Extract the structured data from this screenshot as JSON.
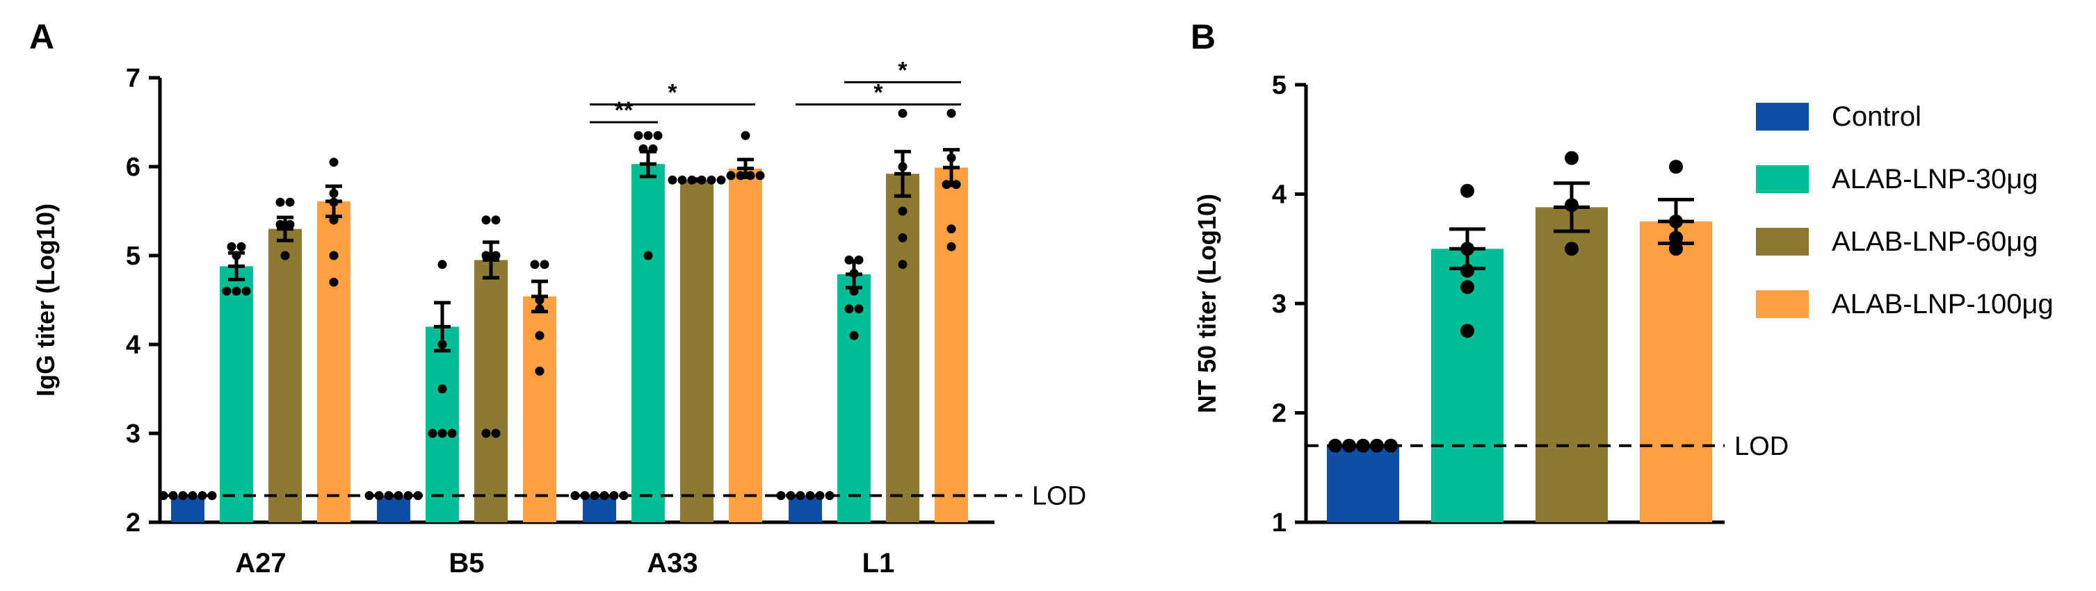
{
  "chart_data": [
    {
      "panel": "A",
      "type": "bar",
      "ylabel": "IgG titer (Log10)",
      "ylim": [
        2,
        7
      ],
      "yticks": [
        "2",
        "3",
        "4",
        "5",
        "6",
        "7"
      ],
      "categories": [
        "A27",
        "B5",
        "A33",
        "L1"
      ],
      "lod": {
        "value": 2.3,
        "label": "LOD"
      },
      "series": [
        {
          "name": "Control",
          "color": "#0d4ea6",
          "values": [
            2.3,
            2.3,
            2.3,
            2.3
          ],
          "errors": [
            0,
            0,
            0,
            0
          ],
          "points": [
            [
              2.3,
              2.3,
              2.3,
              2.3,
              2.3,
              2.3
            ],
            [
              2.3,
              2.3,
              2.3,
              2.3,
              2.3,
              2.3
            ],
            [
              2.3,
              2.3,
              2.3,
              2.3,
              2.3,
              2.3
            ],
            [
              2.3,
              2.3,
              2.3,
              2.3,
              2.3,
              2.3
            ]
          ]
        },
        {
          "name": "ALAB-LNP-30μg",
          "color": "#00bf96",
          "values": [
            4.88,
            4.2,
            6.03,
            4.79
          ],
          "errors": [
            0.15,
            0.27,
            0.14,
            0.15
          ],
          "points": [
            [
              5.1,
              5.1,
              5.0,
              4.6,
              4.6,
              4.6
            ],
            [
              4.9,
              4.0,
              3.5,
              3.0,
              3.0,
              3.0
            ],
            [
              6.35,
              6.35,
              6.35,
              6.2,
              6.2,
              5.0
            ],
            [
              4.95,
              4.95,
              4.8,
              4.6,
              4.4,
              4.4,
              4.1
            ]
          ]
        },
        {
          "name": "ALAB-LNP-60μg",
          "color": "#8d7932",
          "values": [
            5.3,
            4.95,
            5.85,
            5.92
          ],
          "errors": [
            0.13,
            0.2,
            0.01,
            0.25
          ],
          "points": [
            [
              5.6,
              5.6,
              5.35,
              5.35,
              5.0
            ],
            [
              5.4,
              5.4,
              5.0,
              5.0,
              3.0,
              3.0
            ],
            [
              5.85,
              5.85,
              5.85,
              5.85,
              5.85,
              5.85
            ],
            [
              6.6,
              6.0,
              5.5,
              5.2,
              4.9
            ]
          ]
        },
        {
          "name": "ALAB-LNP-100μg",
          "color": "#ffa040",
          "values": [
            5.61,
            4.54,
            5.98,
            5.99
          ],
          "errors": [
            0.17,
            0.17,
            0.1,
            0.2
          ],
          "points": [
            [
              6.05,
              5.7,
              5.6,
              5.4,
              5.0,
              4.7
            ],
            [
              4.9,
              4.9,
              4.5,
              4.4,
              4.1,
              3.7
            ],
            [
              6.35,
              5.9,
              5.9,
              5.9,
              5.9
            ],
            [
              6.6,
              6.1,
              5.8,
              5.8,
              5.3,
              5.1
            ]
          ]
        }
      ],
      "significance": [
        {
          "category": "A33",
          "from": 0,
          "to": 1,
          "level": 6.5,
          "label": "**"
        },
        {
          "category": "A33",
          "from": 0,
          "to": 3,
          "level": 6.7,
          "label": "*"
        },
        {
          "category": "L1",
          "from": 0,
          "to": 3,
          "level": 6.7,
          "label": "*"
        },
        {
          "category": "L1",
          "from": 1,
          "to": 3,
          "level": 6.95,
          "label": "*"
        }
      ]
    },
    {
      "panel": "B",
      "type": "bar",
      "ylabel": "NT 50 titer (Log10)",
      "ylim": [
        1,
        5
      ],
      "yticks": [
        "1",
        "2",
        "3",
        "4",
        "5"
      ],
      "lod": {
        "value": 1.7,
        "label": "LOD"
      },
      "series": [
        {
          "name": "Control",
          "color": "#0d4ea6",
          "value": 1.7,
          "error": 0,
          "points": [
            1.7,
            1.7,
            1.7,
            1.7,
            1.7
          ]
        },
        {
          "name": "ALAB-LNP-30μg",
          "color": "#00bf96",
          "value": 3.5,
          "error": 0.18,
          "points": [
            4.03,
            3.5,
            3.3,
            3.15,
            2.75
          ]
        },
        {
          "name": "ALAB-LNP-60μg",
          "color": "#8d7932",
          "value": 3.88,
          "error": 0.22,
          "points": [
            4.33,
            3.9,
            3.5
          ]
        },
        {
          "name": "ALAB-LNP-100μg",
          "color": "#ffa040",
          "value": 3.75,
          "error": 0.2,
          "points": [
            4.25,
            3.75,
            3.6,
            3.5
          ]
        }
      ]
    }
  ],
  "panel_labels": {
    "a": "A",
    "b": "B"
  },
  "legend": [
    "Control",
    "ALAB-LNP-30μg",
    "ALAB-LNP-60μg",
    "ALAB-LNP-100μg"
  ]
}
